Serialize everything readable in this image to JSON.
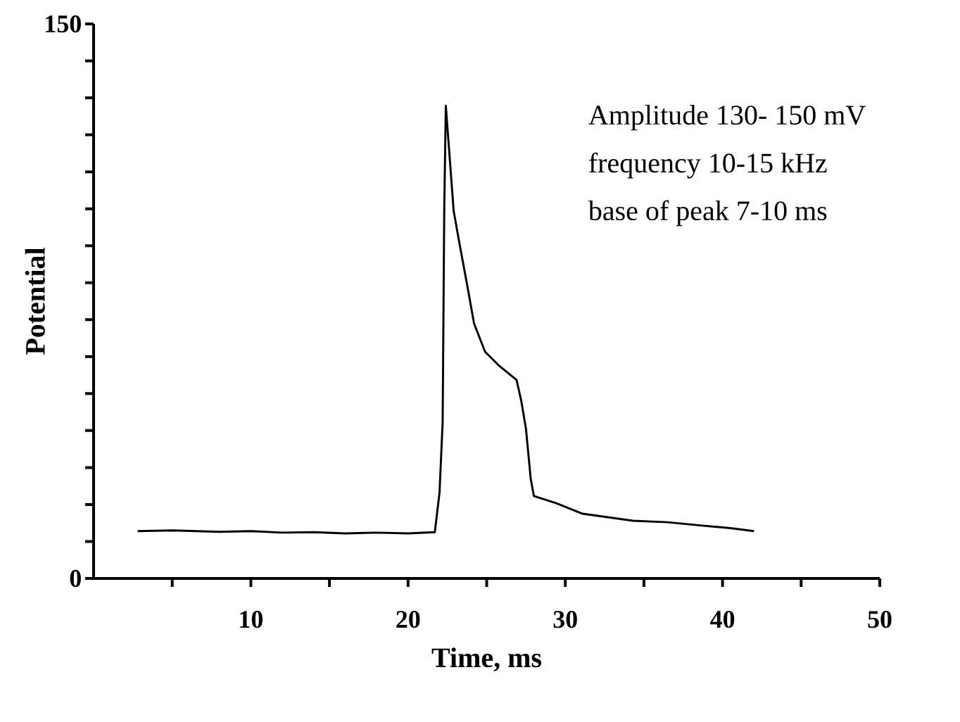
{
  "chart_data": {
    "type": "line",
    "xlabel": "Time, ms",
    "ylabel": "Potential",
    "xlim": [
      0,
      50
    ],
    "ylim": [
      0,
      150
    ],
    "xticks": [
      {
        "value": 5,
        "label": null
      },
      10,
      {
        "value": 15,
        "label": null
      },
      20,
      {
        "value": 25,
        "label": null
      },
      30,
      {
        "value": 35,
        "label": null
      },
      40,
      {
        "value": 45,
        "label": null
      },
      50
    ],
    "yticks": [
      0,
      {
        "value": 10,
        "label": null
      },
      {
        "value": 20,
        "label": null
      },
      {
        "value": 30,
        "label": null
      },
      {
        "value": 40,
        "label": null
      },
      {
        "value": 50,
        "label": null
      },
      {
        "value": 60,
        "label": null
      },
      {
        "value": 70,
        "label": null
      },
      {
        "value": 80,
        "label": null
      },
      {
        "value": 90,
        "label": null
      },
      {
        "value": 100,
        "label": null
      },
      {
        "value": 110,
        "label": null
      },
      {
        "value": 120,
        "label": null
      },
      {
        "value": 130,
        "label": null
      },
      {
        "value": 140,
        "label": null
      },
      150
    ],
    "grid": false,
    "series": [
      {
        "color": "#000000",
        "x": [
          2.8,
          5,
          8,
          10,
          12,
          14,
          16,
          18,
          20,
          21.7,
          22.0,
          22.2,
          22.3,
          22.4,
          22.9,
          23.3,
          23.8,
          24.2,
          24.9,
          25.8,
          26.9,
          27.2,
          27.5,
          27.8,
          28.0,
          29.4,
          31.1,
          34.3,
          36.5,
          38.7,
          40.5,
          42.0
        ],
        "values": [
          12.8,
          13.0,
          12.6,
          12.8,
          12.4,
          12.5,
          12.2,
          12.4,
          12.2,
          12.5,
          23.2,
          42.3,
          99.4,
          127.9,
          99.4,
          89.9,
          78.4,
          68.9,
          61.3,
          57.5,
          53.7,
          48.0,
          40.4,
          27.0,
          22.3,
          20.4,
          17.5,
          15.6,
          15.2,
          14.3,
          13.6,
          12.8
        ]
      }
    ],
    "annotations": [
      "Amplitude 130- 150 mV",
      "frequency 10-15 kHz",
      "base of peak 7-10 ms"
    ]
  }
}
